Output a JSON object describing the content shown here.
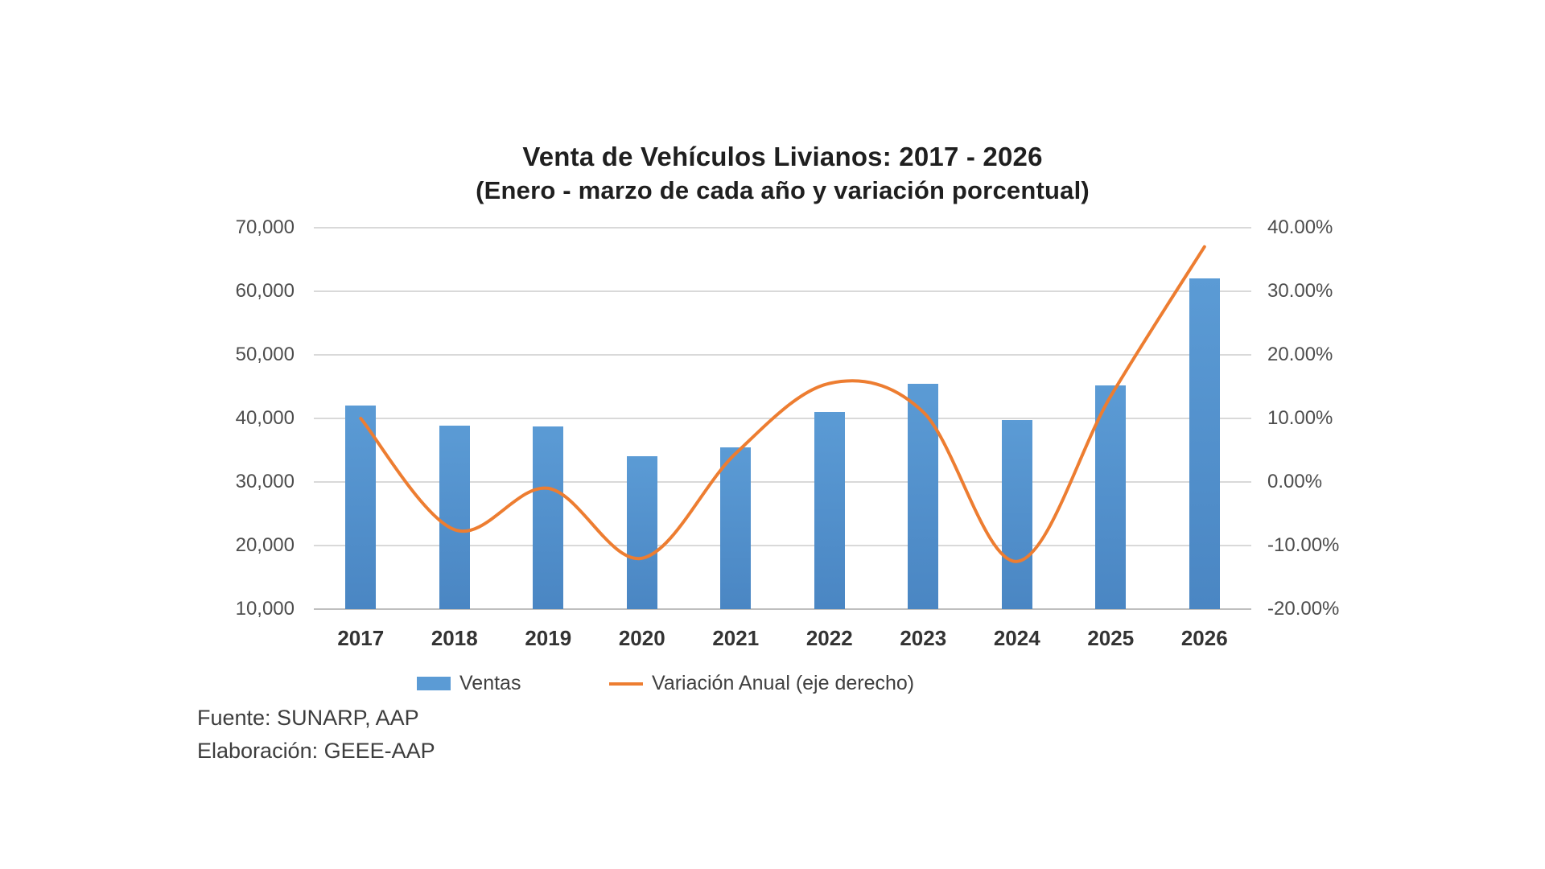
{
  "page": {
    "background": "#ffffff"
  },
  "chart_data": {
    "type": "bar",
    "combo_types": [
      "bar",
      "line"
    ],
    "title": "Venta de Vehículos Livianos: 2017 - 2026",
    "subtitle": "(Enero - marzo de cada año y variación porcentual)",
    "categories": [
      "2017",
      "2018",
      "2019",
      "2020",
      "2021",
      "2022",
      "2023",
      "2024",
      "2025",
      "2026"
    ],
    "series": [
      {
        "name": "Ventas",
        "type": "bar",
        "axis": "left",
        "color": "#5B9BD5",
        "values": [
          42000,
          38900,
          38700,
          34000,
          35500,
          41000,
          45500,
          39800,
          45200,
          62000
        ]
      },
      {
        "name": "Variación Anual (eje derecho)",
        "type": "line",
        "axis": "right",
        "color": "#ED7D31",
        "values": [
          10.0,
          -7.5,
          -1.0,
          -12.0,
          4.5,
          15.5,
          11.0,
          -12.5,
          13.5,
          37.0
        ]
      }
    ],
    "left_axis": {
      "min": 10000,
      "max": 70000,
      "step": 10000,
      "tick_labels_top_to_bottom": [
        "70,000",
        "60,000",
        "50,000",
        "40,000",
        "30,000",
        "20,000",
        "10,000"
      ]
    },
    "right_axis": {
      "min": -20,
      "max": 40,
      "step": 10,
      "tick_labels_top_to_bottom": [
        "40.00%",
        "30.00%",
        "20.00%",
        "10.00%",
        "0.00%",
        "-10.00%",
        "-20.00%"
      ]
    },
    "grid": true,
    "gridline_color": "#d9d9d9",
    "legend_position": "bottom",
    "footnotes": {
      "source": "Fuente: SUNARP, AAP",
      "elaboration": "Elaboración: GEEE-AAP"
    }
  }
}
